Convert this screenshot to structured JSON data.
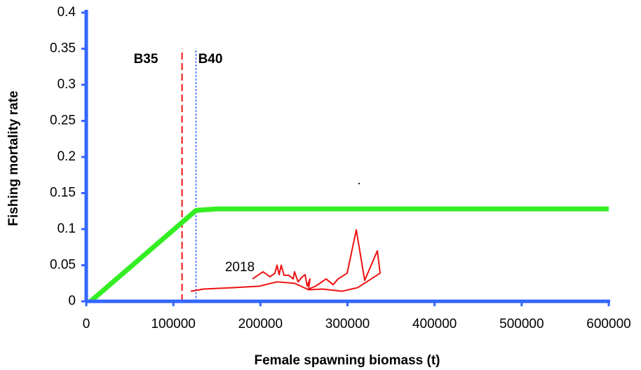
{
  "chart_data": {
    "type": "line",
    "x_label": "Female spawning biomass (t)",
    "y_label": "Fishing mortality rate",
    "xlim": [
      0,
      600000
    ],
    "xticks": [
      0,
      100000,
      200000,
      300000,
      400000,
      500000,
      600000
    ],
    "ylim": [
      0,
      0.4
    ],
    "yticks": [
      0,
      0.05,
      0.1,
      0.15,
      0.2,
      0.25,
      0.3,
      0.35,
      0.4
    ],
    "axis_color": "#3366ff",
    "series": [
      {
        "color": "#33ee22",
        "x": [
          5000,
          126000,
          150000,
          600000
        ],
        "values": [
          0,
          0.126,
          0.128,
          0.128
        ]
      },
      {
        "color": "#ee1111",
        "x": [
          190880,
          202960,
          211010,
          216650,
          219060,
          221480,
          223900,
          227120,
          232760,
          237590,
          239200,
          243230,
          247250,
          251280,
          253700,
          256920,
          255320,
          263370,
          275450,
          283500,
          289140,
          299610,
          310080,
          319740,
          334240,
          337460,
          311690,
          293970,
          271420,
          255320,
          239200,
          219060,
          198930,
          170740,
          134500,
          120000
        ],
        "values": [
          0.031,
          0.041,
          0.034,
          0.039,
          0.05,
          0.037,
          0.05,
          0.036,
          0.036,
          0.031,
          0.041,
          0.027,
          0.033,
          0.037,
          0.021,
          0.031,
          0.017,
          0.021,
          0.031,
          0.023,
          0.031,
          0.039,
          0.099,
          0.029,
          0.07,
          0.039,
          0.019,
          0.014,
          0.017,
          0.016,
          0.025,
          0.027,
          0.021,
          0.019,
          0.017,
          0.014
        ]
      }
    ],
    "reference_lines": [
      {
        "label": "B35",
        "x": 110000,
        "ymax": 0.35,
        "color": "#ee1111",
        "style": "dashed"
      },
      {
        "label": "B40",
        "x": 126000,
        "ymax": 0.35,
        "color": "#3366ff",
        "style": "dotted"
      }
    ],
    "annotations": [
      "2018",
      "."
    ]
  }
}
